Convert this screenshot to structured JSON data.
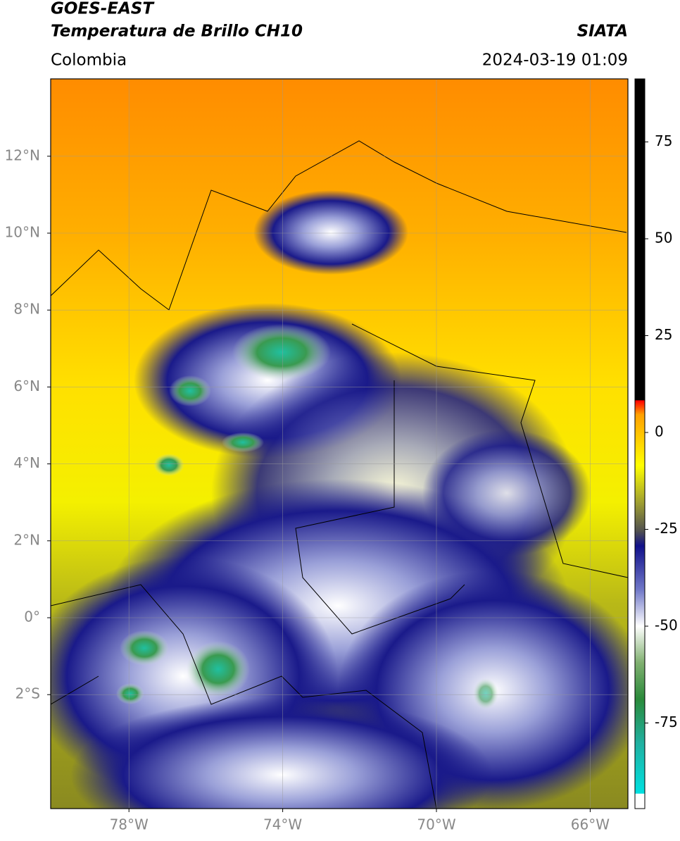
{
  "header": {
    "title_lines": [
      "GOES-EAST",
      "Temperatura de Brillo CH10"
    ],
    "region": "Colombia",
    "source": "SIATA",
    "datetime": "2024-03-19 01:09"
  },
  "map": {
    "lat_ticks": [
      {
        "value": 12,
        "label": "12°N"
      },
      {
        "value": 10,
        "label": "10°N"
      },
      {
        "value": 8,
        "label": "8°N"
      },
      {
        "value": 6,
        "label": "6°N"
      },
      {
        "value": 4,
        "label": "4°N"
      },
      {
        "value": 2,
        "label": "2°N"
      },
      {
        "value": 0,
        "label": "0°"
      },
      {
        "value": -2,
        "label": "2°S"
      }
    ],
    "lon_ticks": [
      {
        "value": -78,
        "label": "78°W"
      },
      {
        "value": -74,
        "label": "74°W"
      },
      {
        "value": -70,
        "label": "70°W"
      },
      {
        "value": -66,
        "label": "66°W"
      }
    ]
  },
  "colorbar": {
    "ticks": [
      75,
      50,
      25,
      0,
      -25,
      -50,
      -75
    ]
  }
}
